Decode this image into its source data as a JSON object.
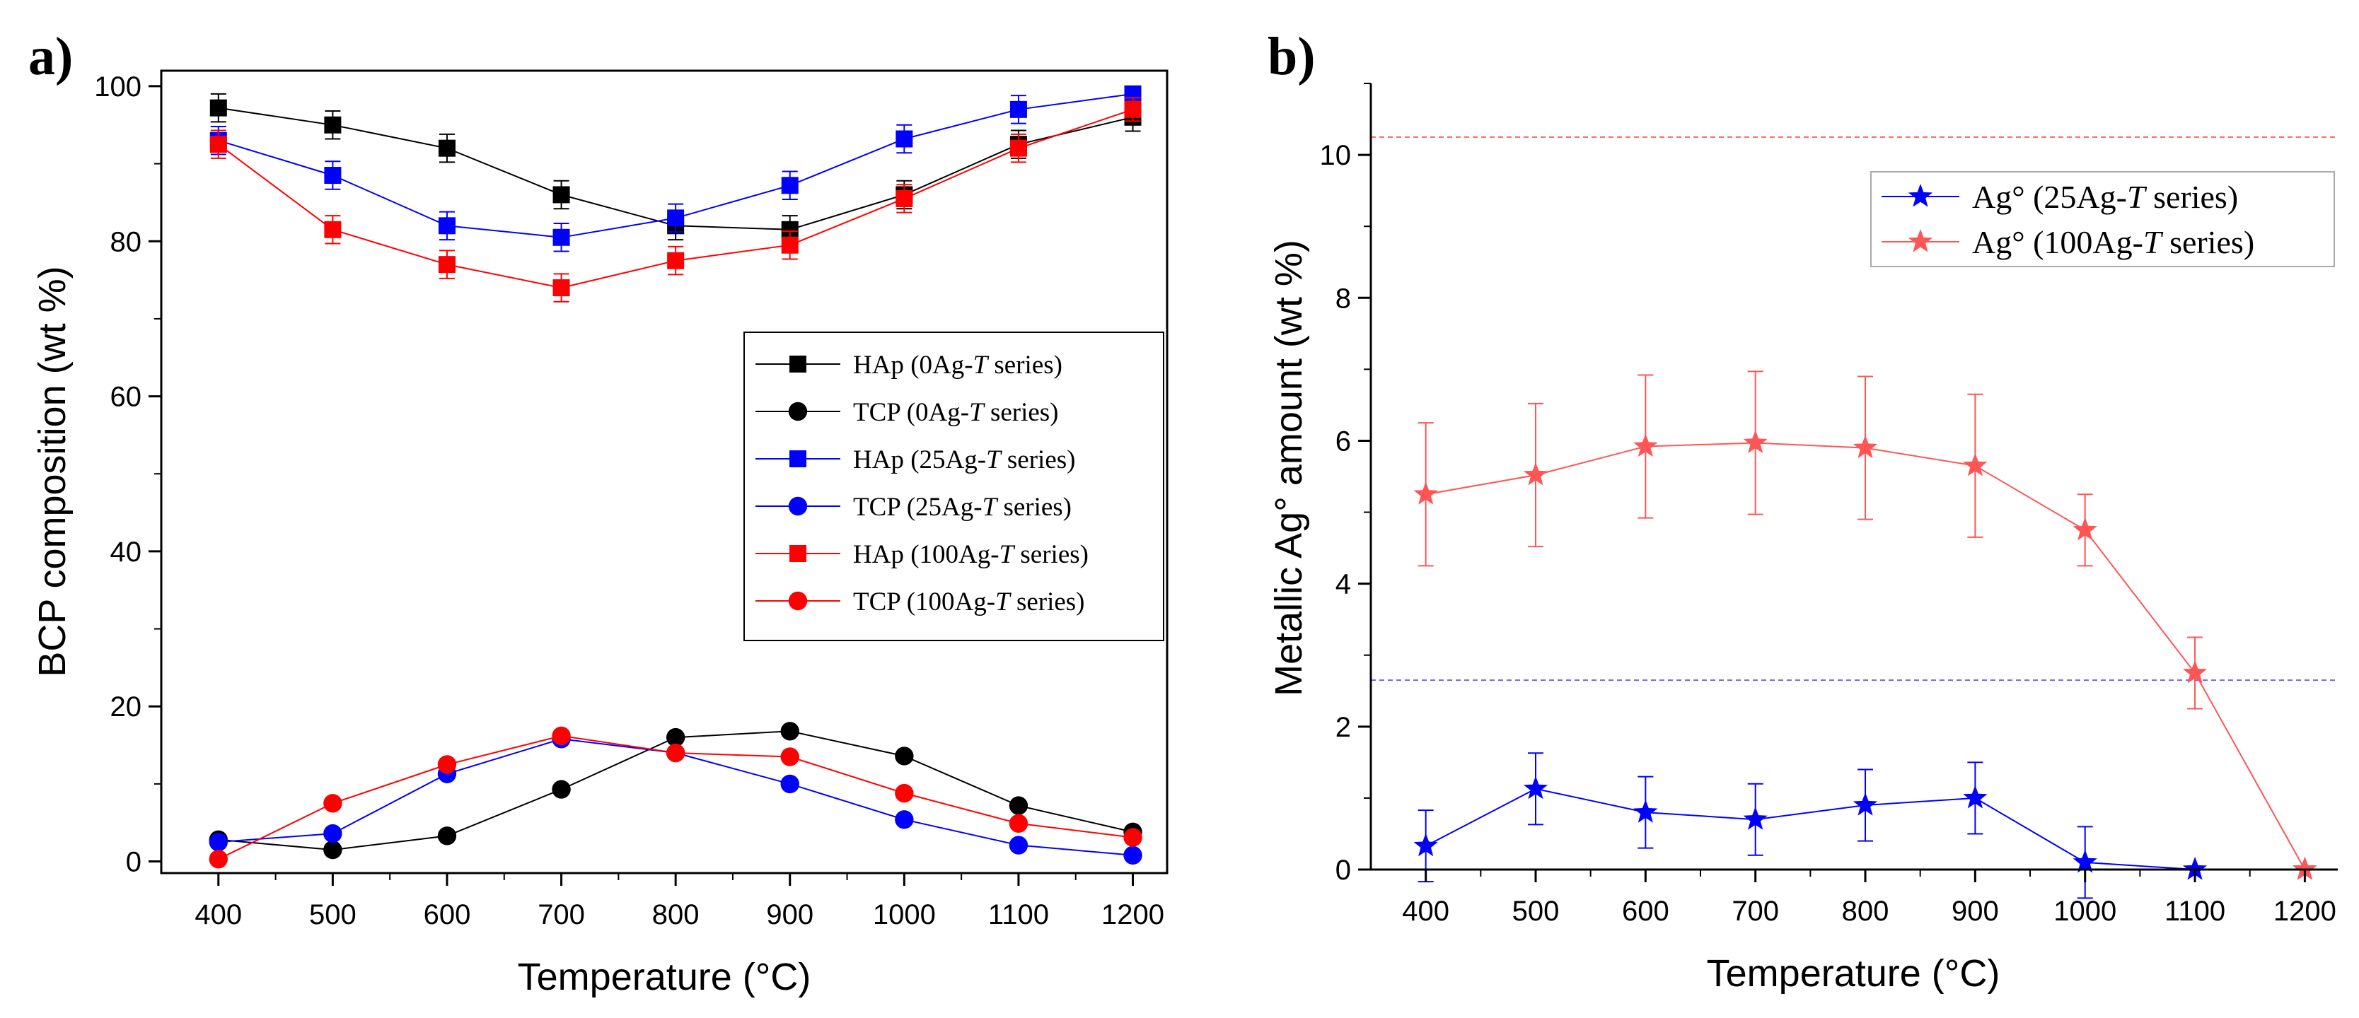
{
  "chart_data": [
    {
      "panel": "a)",
      "type": "line",
      "xlabel": "Temperature (°C)",
      "ylabel": "BCP composition (wt %)",
      "xlim": [
        350,
        1230
      ],
      "ylim": [
        -1.5,
        102
      ],
      "xticks": [
        400,
        500,
        600,
        700,
        800,
        900,
        1000,
        1100,
        1200
      ],
      "yticks": [
        0,
        20,
        40,
        60,
        80,
        100
      ],
      "x": [
        400,
        500,
        600,
        700,
        800,
        900,
        1000,
        1100,
        1200
      ],
      "series": [
        {
          "name": "HAp (0Ag-",
          "name_italic": "T",
          "name_suffix": " series)",
          "color": "#000000",
          "marker": "square",
          "values": [
            97.2,
            95.0,
            92.0,
            86.0,
            82.0,
            81.5,
            86.0,
            92.5,
            96.0
          ],
          "error": [
            1.8,
            1.8,
            1.8,
            1.8,
            1.8,
            1.8,
            1.8,
            1.8,
            1.8
          ]
        },
        {
          "name": "TCP (0Ag-",
          "name_italic": "T",
          "name_suffix": " series)",
          "color": "#000000",
          "marker": "circle",
          "values": [
            2.8,
            1.5,
            3.3,
            9.3,
            16.0,
            16.8,
            13.6,
            7.2,
            3.8
          ],
          "error": [
            0.5,
            0.5,
            0.5,
            0.5,
            0.5,
            0.5,
            0.5,
            0.5,
            0.5
          ]
        },
        {
          "name": "HAp (25Ag-",
          "name_italic": "T",
          "name_suffix": " series)",
          "color": "#0000ff",
          "marker": "square",
          "values": [
            93.0,
            88.5,
            82.0,
            80.5,
            83.0,
            87.2,
            93.2,
            97.0,
            99.0
          ],
          "error": [
            1.8,
            1.8,
            1.8,
            1.8,
            1.8,
            1.8,
            1.8,
            1.8,
            1.0
          ]
        },
        {
          "name": "TCP (25Ag-",
          "name_italic": "T",
          "name_suffix": " series)",
          "color": "#0000ff",
          "marker": "circle",
          "values": [
            2.5,
            3.6,
            11.3,
            15.8,
            14.0,
            10.0,
            5.4,
            2.1,
            0.8
          ],
          "error": [
            0.5,
            0.5,
            0.5,
            0.5,
            0.5,
            0.5,
            0.5,
            0.5,
            0.5
          ]
        },
        {
          "name": "HAp (100Ag-",
          "name_italic": "T",
          "name_suffix": " series)",
          "color": "#ff0000",
          "marker": "square",
          "values": [
            92.5,
            81.5,
            77.0,
            74.0,
            77.5,
            79.5,
            85.5,
            92.0,
            97.0
          ],
          "error": [
            1.8,
            1.8,
            1.8,
            1.8,
            1.8,
            1.8,
            1.8,
            1.8,
            1.5
          ]
        },
        {
          "name": "TCP (100Ag-",
          "name_italic": "T",
          "name_suffix": " series)",
          "color": "#ff0000",
          "marker": "circle",
          "values": [
            0.3,
            7.5,
            12.5,
            16.2,
            14.0,
            13.5,
            8.8,
            4.9,
            3.1
          ],
          "error": [
            0.5,
            0.5,
            0.5,
            0.5,
            0.5,
            0.5,
            0.5,
            0.5,
            0.5
          ]
        }
      ],
      "legend_position": "center-right"
    },
    {
      "panel": "b)",
      "type": "line",
      "xlabel": "Temperature (°C)",
      "ylabel": "Metallic Ag° amount (wt %)",
      "xlim": [
        350,
        1230
      ],
      "ylim": [
        0,
        11
      ],
      "xticks": [
        400,
        500,
        600,
        700,
        800,
        900,
        1000,
        1100,
        1200
      ],
      "yticks": [
        0,
        2,
        4,
        6,
        8,
        10
      ],
      "x": [
        400,
        500,
        600,
        700,
        800,
        900,
        1000,
        1100,
        1200
      ],
      "series": [
        {
          "name": "Ag° (25Ag-",
          "name_italic": "T",
          "name_suffix": " series)",
          "color": "#0000ff",
          "marker": "star",
          "values": [
            0.33,
            1.13,
            0.8,
            0.7,
            0.9,
            1.0,
            0.1,
            0.0,
            0.0
          ],
          "error": [
            0.5,
            0.5,
            0.5,
            0.5,
            0.5,
            0.5,
            0.5,
            0,
            0
          ]
        },
        {
          "name": "Ag° (100Ag-",
          "name_italic": "T",
          "name_suffix": " series)",
          "color": "#ff5555",
          "marker": "star",
          "values": [
            5.25,
            5.52,
            5.92,
            5.97,
            5.9,
            5.65,
            4.75,
            2.75,
            0.0
          ],
          "error": [
            1.0,
            1.0,
            1.0,
            1.0,
            1.0,
            1.0,
            0.5,
            0.5,
            0
          ]
        }
      ],
      "reference_lines": [
        {
          "y": 10.25,
          "color": "#ff6666"
        },
        {
          "y": 2.65,
          "color": "#6666ff"
        }
      ],
      "legend_position": "top-right"
    }
  ]
}
